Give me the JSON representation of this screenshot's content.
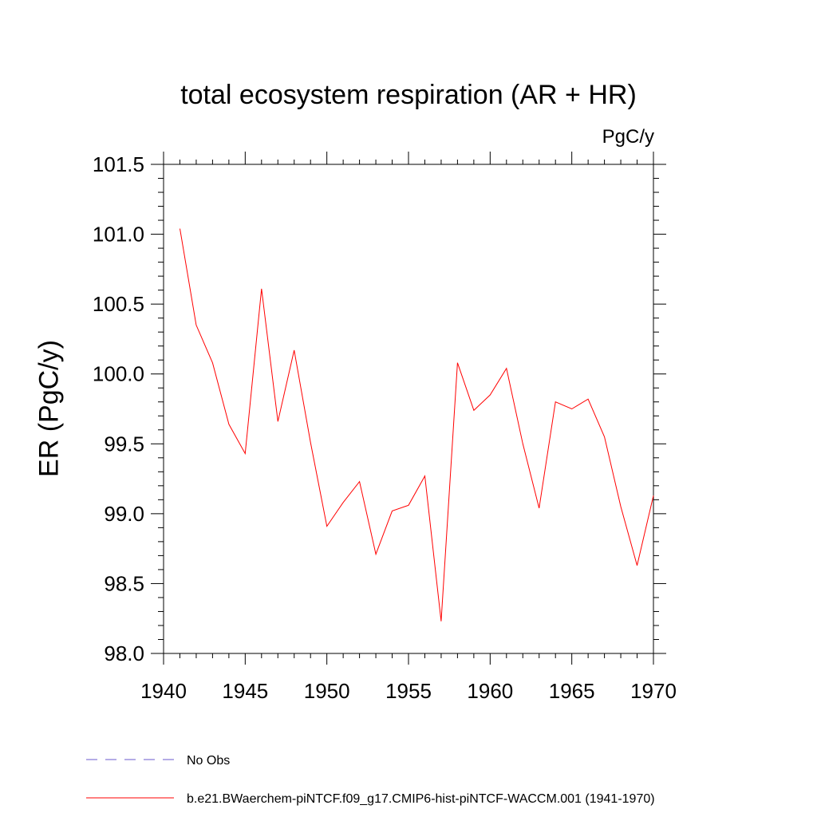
{
  "chart_data": {
    "type": "line",
    "title": "total ecosystem respiration (AR + HR)",
    "units": "PgC/y",
    "ylabel": "ER  (PgC/y)",
    "xlabel": "",
    "xlim": [
      1940,
      1970
    ],
    "ylim": [
      98.0,
      101.5
    ],
    "x_ticks": [
      1940,
      1945,
      1950,
      1955,
      1960,
      1965,
      1970
    ],
    "y_ticks": [
      "98.0",
      "98.5",
      "99.0",
      "99.5",
      "100.0",
      "100.5",
      "101.0",
      "101.5"
    ],
    "series": [
      {
        "name": "b.e21.BWaerchem-piNTCF.f09_g17.CMIP6-hist-piNTCF-WACCM.001 (1941-1970)",
        "color": "#ff0000",
        "style": "solid",
        "x": [
          1941,
          1942,
          1943,
          1944,
          1945,
          1946,
          1947,
          1948,
          1949,
          1950,
          1951,
          1952,
          1953,
          1954,
          1955,
          1956,
          1957,
          1958,
          1959,
          1960,
          1961,
          1962,
          1963,
          1964,
          1965,
          1966,
          1967,
          1968,
          1969,
          1970
        ],
        "y": [
          101.04,
          100.35,
          100.08,
          99.64,
          99.43,
          100.61,
          99.66,
          100.17,
          99.51,
          98.91,
          99.08,
          99.23,
          98.71,
          99.02,
          99.06,
          99.27,
          98.23,
          100.08,
          99.74,
          99.85,
          100.04,
          99.5,
          99.04,
          99.8,
          99.75,
          99.82,
          99.55,
          99.05,
          98.63,
          99.13
        ]
      }
    ],
    "legend": [
      {
        "label": "No Obs",
        "color": "#6a5acd",
        "style": "dashed"
      },
      {
        "label": "b.e21.BWaerchem-piNTCF.f09_g17.CMIP6-hist-piNTCF-WACCM.001 (1941-1970)",
        "color": "#ff0000",
        "style": "solid"
      }
    ]
  }
}
